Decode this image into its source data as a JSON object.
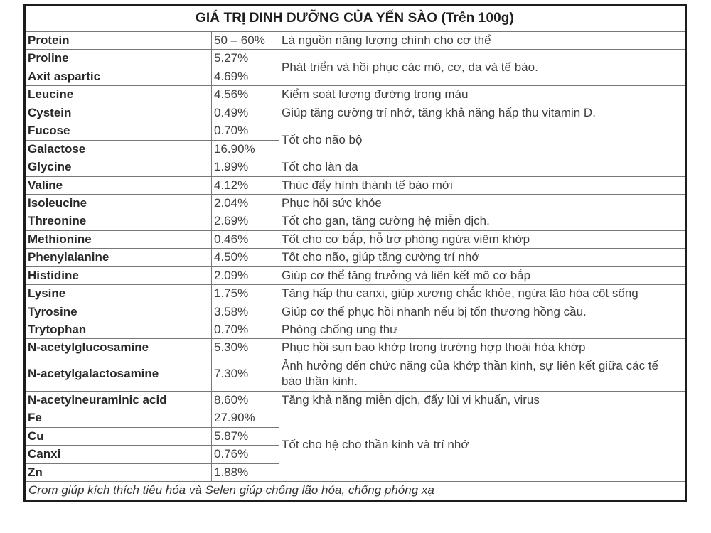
{
  "title": "GIÁ TRỊ DINH DƯỠNG CỦA YẾN SÀO (Trên 100g)",
  "footnote": "Crom giúp kích thích tiêu hóa và Selen giúp chống lão hóa, chống phóng xạ",
  "rows": [
    {
      "name": "Protein",
      "value": "50 – 60%",
      "desc": "Là nguồn năng lượng chính cho cơ thể",
      "desc_rowspan": 1
    },
    {
      "name": "Proline",
      "value": "5.27%",
      "desc": "Phát triển và hồi phục các mô, cơ, da và tế bào.",
      "desc_rowspan": 2
    },
    {
      "name": "Axit aspartic",
      "value": "4.69%"
    },
    {
      "name": "Leucine",
      "value": "4.56%",
      "desc": "Kiểm soát lượng đường trong máu",
      "desc_rowspan": 1
    },
    {
      "name": "Cystein",
      "value": "0.49%",
      "desc": "Giúp tăng cường trí nhớ, tăng khả năng hấp thu vitamin D.",
      "desc_rowspan": 1
    },
    {
      "name": "Fucose",
      "value": "0.70%",
      "desc": "Tốt cho não bộ",
      "desc_rowspan": 2
    },
    {
      "name": "Galactose",
      "value": "16.90%"
    },
    {
      "name": "Glycine",
      "value": "1.99%",
      "desc": "Tốt cho làn da",
      "desc_rowspan": 1
    },
    {
      "name": "Valine",
      "value": "4.12%",
      "desc": "Thúc đẩy hình thành tế bào mới",
      "desc_rowspan": 1
    },
    {
      "name": "Isoleucine",
      "value": "2.04%",
      "desc": "Phục hồi sức khỏe",
      "desc_rowspan": 1
    },
    {
      "name": "Threonine",
      "value": "2.69%",
      "desc": "Tốt cho gan, tăng cường hệ miễn dịch.",
      "desc_rowspan": 1
    },
    {
      "name": "Methionine",
      "value": "0.46%",
      "desc": "Tốt cho cơ bắp, hỗ trợ phòng ngừa viêm khớp",
      "desc_rowspan": 1
    },
    {
      "name": "Phenylalanine",
      "value": "4.50%",
      "desc": "Tốt cho não, giúp tăng cường trí nhớ",
      "desc_rowspan": 1
    },
    {
      "name": "Histidine",
      "value": "2.09%",
      "desc": "Giúp cơ thể tăng trưởng và liên kết mô cơ bắp",
      "desc_rowspan": 1
    },
    {
      "name": "Lysine",
      "value": "1.75%",
      "desc": "Tăng hấp thu canxi, giúp xương chắc khỏe, ngừa lão hóa cột sống",
      "desc_rowspan": 1
    },
    {
      "name": "Tyrosine",
      "value": "3.58%",
      "desc": "Giúp cơ thể phục hồi nhanh nếu bị tổn thương hồng cầu.",
      "desc_rowspan": 1
    },
    {
      "name": "Trytophan",
      "value": "0.70%",
      "desc": "Phòng chống ung thư",
      "desc_rowspan": 1
    },
    {
      "name": "N-acetylglucosamine",
      "value": "5.30%",
      "desc": "Phục hồi sụn bao khớp trong trường hợp thoái hóa khớp",
      "desc_rowspan": 1
    },
    {
      "name": "N-acetylgalactosamine",
      "value": "7.30%",
      "desc": "Ảnh hưởng đến chức năng của khớp thần kinh, sự liên kết giữa các tế bào thần kinh.",
      "desc_rowspan": 1
    },
    {
      "name": "N-acetylneuraminic acid",
      "value": "8.60%",
      "desc": "Tăng khả năng miễn dịch, đẩy lùi vi khuẩn, virus",
      "desc_rowspan": 1
    },
    {
      "name": "Fe",
      "value": "27.90%",
      "desc": "Tốt cho hệ cho thần kinh và trí nhớ",
      "desc_rowspan": 4
    },
    {
      "name": "Cu",
      "value": "5.87%"
    },
    {
      "name": "Canxi",
      "value": "0.76%"
    },
    {
      "name": "Zn",
      "value": "1.88%"
    }
  ]
}
